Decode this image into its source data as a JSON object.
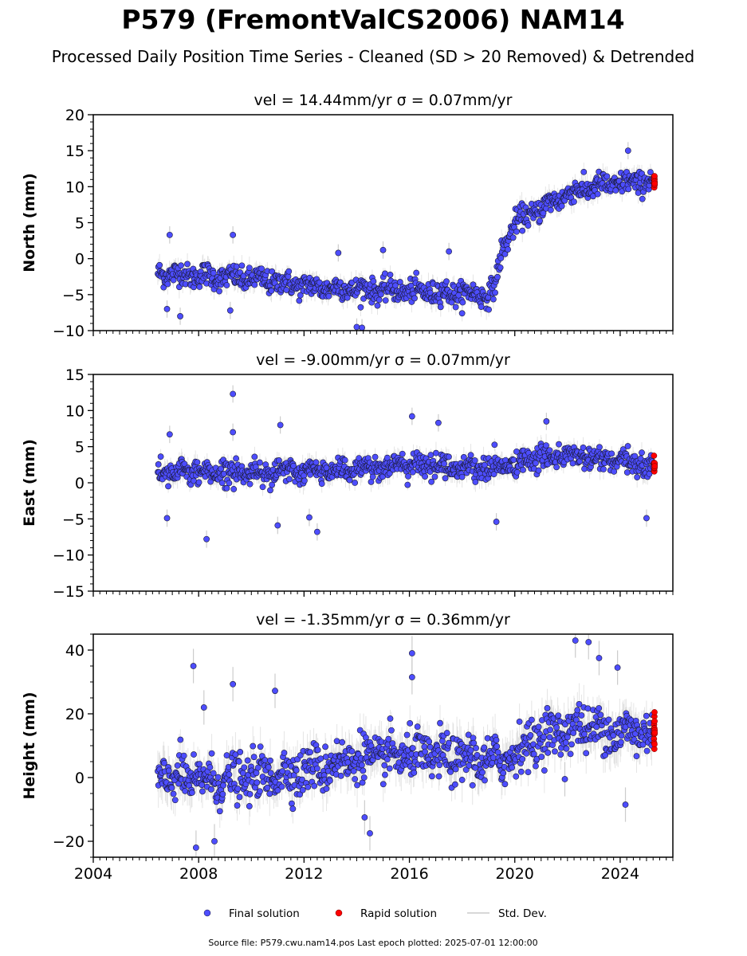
{
  "figure": {
    "title": "P579 (FremontValCS2006) NAM14",
    "subtitle": "Processed Daily Position Time Series - Cleaned (SD > 20 Removed) & Detrended",
    "footer": "Source file: P579.cwu.nam14.pos  Last epoch plotted: 2025-07-01 12:00:00"
  },
  "legend": {
    "location": "bottom-center",
    "items": [
      {
        "label": "Final solution",
        "color": "#4d4dff"
      },
      {
        "label": "Rapid solution",
        "color": "#ff0000"
      },
      {
        "label": "Std. Dev.",
        "color": "#cccccc"
      }
    ]
  },
  "colors": {
    "final": "#4d4dff",
    "rapid": "#ff0000",
    "stddev": "#cccccc",
    "marker_edge": "#1a1a33"
  },
  "chart_data": [
    {
      "type": "scatter",
      "vel_label": "vel = 14.44mm/yr",
      "sigma_label": "σ = 0.07mm/yr",
      "ylabel": "North (mm)",
      "xlim": [
        2004.0,
        2026.0
      ],
      "ylim": [
        -10,
        20
      ],
      "yticks": [
        -10,
        -5,
        0,
        5,
        10,
        15,
        20
      ],
      "xticks": [
        2004,
        2008,
        2012,
        2016,
        2020,
        2024
      ],
      "grid": false,
      "x_start": 2006.45,
      "final_end": 2025.25,
      "rapid_end": 2025.5,
      "trend": [
        [
          2006.45,
          -2.0
        ],
        [
          2010.0,
          -2.8
        ],
        [
          2012.5,
          -4.0
        ],
        [
          2016.0,
          -4.5
        ],
        [
          2019.0,
          -5.0
        ],
        [
          2019.25,
          -4.0
        ],
        [
          2019.5,
          1.0
        ],
        [
          2020.0,
          5.0
        ],
        [
          2021.0,
          7.0
        ],
        [
          2022.0,
          9.0
        ],
        [
          2023.0,
          10.0
        ],
        [
          2025.5,
          11.0
        ]
      ],
      "noise": 1.0,
      "outliers": [
        [
          2006.8,
          -7.0
        ],
        [
          2007.3,
          -8.0
        ],
        [
          2009.2,
          -7.2
        ],
        [
          2014.0,
          -9.5
        ],
        [
          2014.2,
          -9.6
        ],
        [
          2015.0,
          1.2
        ],
        [
          2017.5,
          1.0
        ],
        [
          2013.3,
          0.8
        ],
        [
          2024.3,
          15.0
        ],
        [
          2006.9,
          3.3
        ],
        [
          2009.3,
          3.3
        ]
      ]
    },
    {
      "type": "scatter",
      "vel_label": "vel = -9.00mm/yr",
      "sigma_label": "σ = 0.07mm/yr",
      "ylabel": "East (mm)",
      "xlim": [
        2004.0,
        2026.0
      ],
      "ylim": [
        -15,
        15
      ],
      "yticks": [
        -15,
        -10,
        -5,
        0,
        5,
        10,
        15
      ],
      "xticks": [
        2004,
        2008,
        2012,
        2016,
        2020,
        2024
      ],
      "grid": false,
      "x_start": 2006.45,
      "final_end": 2025.25,
      "rapid_end": 2025.5,
      "trend": [
        [
          2006.45,
          1.5
        ],
        [
          2012.0,
          1.5
        ],
        [
          2016.0,
          2.5
        ],
        [
          2019.0,
          2.0
        ],
        [
          2020.0,
          2.5
        ],
        [
          2021.0,
          3.5
        ],
        [
          2022.0,
          3.8
        ],
        [
          2025.5,
          2.2
        ]
      ],
      "noise": 1.0,
      "outliers": [
        [
          2008.3,
          -7.8
        ],
        [
          2009.3,
          12.3
        ],
        [
          2009.3,
          7.0
        ],
        [
          2011.0,
          -5.9
        ],
        [
          2011.1,
          8.0
        ],
        [
          2012.2,
          -4.8
        ],
        [
          2012.5,
          -6.8
        ],
        [
          2016.1,
          9.2
        ],
        [
          2017.1,
          8.3
        ],
        [
          2019.3,
          -5.4
        ],
        [
          2021.2,
          8.5
        ],
        [
          2025.0,
          -4.9
        ],
        [
          2006.8,
          -4.9
        ],
        [
          2006.9,
          6.7
        ]
      ]
    },
    {
      "type": "scatter",
      "vel_label": "vel = -1.35mm/yr",
      "sigma_label": "σ = 0.36mm/yr",
      "ylabel": "Height (mm)",
      "xlim": [
        2004.0,
        2026.0
      ],
      "ylim": [
        -25,
        45
      ],
      "yticks": [
        -20,
        0,
        20,
        40
      ],
      "xticks": [
        2004,
        2008,
        2012,
        2016,
        2020,
        2024
      ],
      "grid": false,
      "x_start": 2006.45,
      "final_end": 2025.25,
      "rapid_end": 2025.5,
      "trend": [
        [
          2006.45,
          0.0
        ],
        [
          2009.0,
          -1.0
        ],
        [
          2012.0,
          2.0
        ],
        [
          2014.0,
          6.0
        ],
        [
          2016.0,
          7.0
        ],
        [
          2018.0,
          6.0
        ],
        [
          2019.5,
          5.0
        ],
        [
          2021.0,
          13.0
        ],
        [
          2022.5,
          16.0
        ],
        [
          2024.0,
          14.0
        ],
        [
          2025.5,
          15.0
        ]
      ],
      "noise": 4.5,
      "outliers": [
        [
          2007.8,
          35.0
        ],
        [
          2008.2,
          22.0
        ],
        [
          2009.3,
          29.3
        ],
        [
          2010.9,
          27.2
        ],
        [
          2014.3,
          -12.5
        ],
        [
          2014.5,
          -17.5
        ],
        [
          2016.1,
          39.0
        ],
        [
          2016.1,
          31.5
        ],
        [
          2022.3,
          43.0
        ],
        [
          2022.8,
          42.5
        ],
        [
          2023.2,
          37.5
        ],
        [
          2023.9,
          34.5
        ],
        [
          2021.9,
          -0.5
        ],
        [
          2024.2,
          -8.5
        ],
        [
          2007.9,
          -22.0
        ],
        [
          2008.6,
          -20.0
        ]
      ]
    }
  ]
}
